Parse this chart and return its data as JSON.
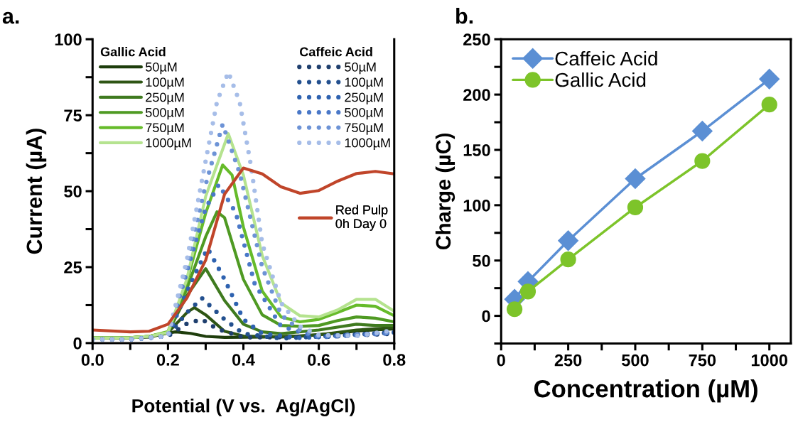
{
  "chart_data": [
    {
      "type": "line",
      "xlabel": "Potential (V vs.  Ag/AgCl)",
      "ylabel": "Current (µA)",
      "annotations": [
        "a."
      ],
      "xlim": [
        0,
        0.8
      ],
      "ylim": [
        0,
        100
      ],
      "xticks": [
        {
          "value": 0,
          "label": "0.0"
        },
        {
          "value": 0.1,
          "label": null
        },
        {
          "value": 0.2,
          "label": "0.2"
        },
        {
          "value": 0.3,
          "label": null
        },
        {
          "value": 0.4,
          "label": "0.4"
        },
        {
          "value": 0.5,
          "label": null
        },
        {
          "value": 0.6,
          "label": "0.6"
        },
        {
          "value": 0.7,
          "label": null
        },
        {
          "value": 0.8,
          "label": "0.8"
        }
      ],
      "yticks": [
        0,
        {
          "value": 12.5,
          "label": null
        },
        25,
        {
          "value": 37.5,
          "label": null
        },
        50,
        {
          "value": 62.5,
          "label": null
        },
        75,
        {
          "value": 87.5,
          "label": null
        },
        100
      ],
      "legend": "top left",
      "legend_title": [
        "Gallic Acid",
        "Caffeic Acid",
        null
      ],
      "marker": "none",
      "grid": false,
      "line_style": "solid",
      "series": [
        {
          "name": "50µM",
          "color": "#1e3d0c",
          "line_style": "solid",
          "x": [
            0,
            0.1,
            0.15,
            0.2,
            0.22,
            0.26,
            0.3,
            0.35,
            0.45,
            0.55,
            0.65,
            0.7,
            0.8
          ],
          "values": [
            1.7,
            1.8,
            2.0,
            3.3,
            3.7,
            3.2,
            2.2,
            1.9,
            2.0,
            2.3,
            3.3,
            4.0,
            4.7
          ]
        },
        {
          "name": "100µM",
          "color": "#2e5514",
          "line_style": "solid",
          "x": [
            0,
            0.1,
            0.15,
            0.2,
            0.25,
            0.27,
            0.3,
            0.35,
            0.4,
            0.5,
            0.6,
            0.7,
            0.8
          ],
          "values": [
            1.7,
            1.8,
            2.2,
            3.5,
            10,
            11.7,
            9.3,
            3.9,
            2.3,
            2.0,
            2.7,
            4.3,
            5.1
          ]
        },
        {
          "name": "250µM",
          "color": "#3f7a1f",
          "line_style": "solid",
          "x": [
            0,
            0.1,
            0.15,
            0.2,
            0.25,
            0.3,
            0.35,
            0.4,
            0.45,
            0.5,
            0.6,
            0.7,
            0.75,
            0.8
          ],
          "values": [
            1.7,
            1.8,
            2.2,
            3.5,
            15.6,
            24.5,
            14,
            6.2,
            3.7,
            3.1,
            4.3,
            6.2,
            5.8,
            5.8
          ]
        },
        {
          "name": "500µM",
          "color": "#4f9a23",
          "line_style": "solid",
          "x": [
            0,
            0.1,
            0.15,
            0.2,
            0.25,
            0.3,
            0.33,
            0.35,
            0.4,
            0.45,
            0.5,
            0.55,
            0.6,
            0.65,
            0.7,
            0.75,
            0.8
          ],
          "values": [
            1.7,
            1.8,
            2.2,
            3.5,
            17.9,
            35,
            43.2,
            41.3,
            21,
            9.3,
            5.8,
            5.5,
            5.8,
            7.4,
            8.6,
            8.2,
            7
          ]
        },
        {
          "name": "750µM",
          "color": "#66bb2a",
          "line_style": "solid",
          "x": [
            0,
            0.1,
            0.15,
            0.2,
            0.25,
            0.3,
            0.345,
            0.37,
            0.4,
            0.45,
            0.5,
            0.55,
            0.6,
            0.65,
            0.7,
            0.75,
            0.8
          ],
          "values": [
            1.7,
            1.8,
            2.2,
            3.8,
            20.2,
            42.8,
            58.6,
            55.3,
            38.2,
            17.1,
            8.6,
            7,
            7.8,
            10.1,
            12.5,
            12.1,
            9
          ]
        },
        {
          "name": "1000µM",
          "color": "#b5e38f",
          "line_style": "solid",
          "x": [
            0,
            0.1,
            0.15,
            0.2,
            0.25,
            0.3,
            0.36,
            0.4,
            0.45,
            0.5,
            0.55,
            0.6,
            0.65,
            0.7,
            0.75,
            0.8
          ],
          "values": [
            1.7,
            1.8,
            2.2,
            3.5,
            21,
            48.3,
            68.9,
            55.3,
            28.8,
            13.2,
            9,
            8.6,
            10.9,
            14.4,
            14.4,
            10.5
          ]
        },
        {
          "name": "50µM",
          "color": "#1f3f6e",
          "line_style": "dotted",
          "x": [
            0,
            0.1,
            0.2,
            0.25,
            0.29,
            0.33,
            0.4,
            0.6,
            0.8
          ],
          "values": [
            1.2,
            1.2,
            2.3,
            6.4,
            7.8,
            4.7,
            1.9,
            2.0,
            3.1
          ]
        },
        {
          "name": "100µM",
          "color": "#23508f",
          "line_style": "dotted",
          "x": [
            0,
            0.1,
            0.2,
            0.25,
            0.29,
            0.35,
            0.4,
            0.5,
            0.8
          ],
          "values": [
            1.2,
            1.2,
            2.3,
            10,
            14.8,
            7.8,
            3.1,
            1.5,
            3.5
          ]
        },
        {
          "name": "250µM",
          "color": "#2e62b0",
          "line_style": "dotted",
          "x": [
            0,
            0.1,
            0.2,
            0.25,
            0.305,
            0.35,
            0.4,
            0.45,
            0.55,
            0.8
          ],
          "values": [
            1.2,
            1.2,
            2.3,
            17,
            31.2,
            21,
            7.8,
            3.1,
            1.7,
            3.5
          ]
        },
        {
          "name": "500µM",
          "color": "#4a78c8",
          "line_style": "dotted",
          "x": [
            0,
            0.1,
            0.2,
            0.25,
            0.3,
            0.335,
            0.38,
            0.43,
            0.5,
            0.6,
            0.8
          ],
          "values": [
            1.2,
            1.2,
            2.3,
            23.4,
            44.4,
            52.2,
            42.8,
            19.5,
            5.5,
            1.9,
            3.3
          ]
        },
        {
          "name": "750µM",
          "color": "#6d93d6",
          "line_style": "dotted",
          "x": [
            0,
            0.1,
            0.2,
            0.25,
            0.3,
            0.345,
            0.39,
            0.45,
            0.5,
            0.55,
            0.6,
            0.8
          ],
          "values": [
            1.2,
            1.2,
            2.3,
            25,
            52.2,
            72,
            56,
            25,
            9.3,
            4.3,
            2.3,
            3.5
          ]
        },
        {
          "name": "1000µM",
          "color": "#a6bde8",
          "line_style": "dotted",
          "x": [
            0,
            0.1,
            0.2,
            0.25,
            0.3,
            0.33,
            0.36,
            0.39,
            0.42,
            0.45,
            0.5,
            0.55,
            0.6,
            0.7,
            0.8
          ],
          "values": [
            1.2,
            1.2,
            2.3,
            27.3,
            60,
            79.4,
            89.2,
            79.4,
            58.4,
            32.7,
            13.2,
            5.5,
            2.7,
            2.3,
            4.3
          ]
        },
        {
          "name": "Red Pulp\n0h Day 0",
          "color": "#c0452a",
          "line_style": "solid",
          "x": [
            0,
            0.1,
            0.15,
            0.2,
            0.25,
            0.3,
            0.35,
            0.4,
            0.45,
            0.5,
            0.55,
            0.6,
            0.65,
            0.7,
            0.75,
            0.8
          ],
          "values": [
            4.3,
            3.7,
            3.9,
            6.2,
            14.8,
            27.3,
            49,
            57.6,
            55.7,
            51.4,
            49.3,
            50.2,
            53.3,
            55.8,
            56.5,
            55.7
          ]
        }
      ]
    },
    {
      "type": "line",
      "xlabel": "Concentration (µM)",
      "ylabel": "Charge (µC)",
      "annotations": [
        "b."
      ],
      "x": [
        50,
        100,
        250,
        500,
        750,
        1000
      ],
      "xlim": [
        0,
        1080
      ],
      "ylim": [
        -25,
        250
      ],
      "xticks": [
        0,
        {
          "value": 125,
          "label": null
        },
        250,
        {
          "value": 375,
          "label": null
        },
        500,
        {
          "value": 625,
          "label": null
        },
        750,
        {
          "value": 875,
          "label": null
        },
        1000
      ],
      "yticks": [
        {
          "value": -25,
          "label": null
        },
        0,
        {
          "value": 25,
          "label": null
        },
        50,
        {
          "value": 75,
          "label": null
        },
        100,
        {
          "value": 125,
          "label": null
        },
        150,
        {
          "value": 175,
          "label": null
        },
        200,
        {
          "value": 225,
          "label": null
        },
        250
      ],
      "legend": "top left",
      "grid": false,
      "line_style": "solid",
      "series": [
        {
          "name": "Caffeic Acid",
          "color": "#5b8fd4",
          "marker": "diamond",
          "values": [
            15,
            31,
            68,
            124,
            167,
            214
          ]
        },
        {
          "name": "Gallic Acid",
          "color": "#7dc42a",
          "marker": "circle",
          "values": [
            6,
            22,
            51,
            98,
            140,
            191
          ]
        }
      ]
    }
  ]
}
